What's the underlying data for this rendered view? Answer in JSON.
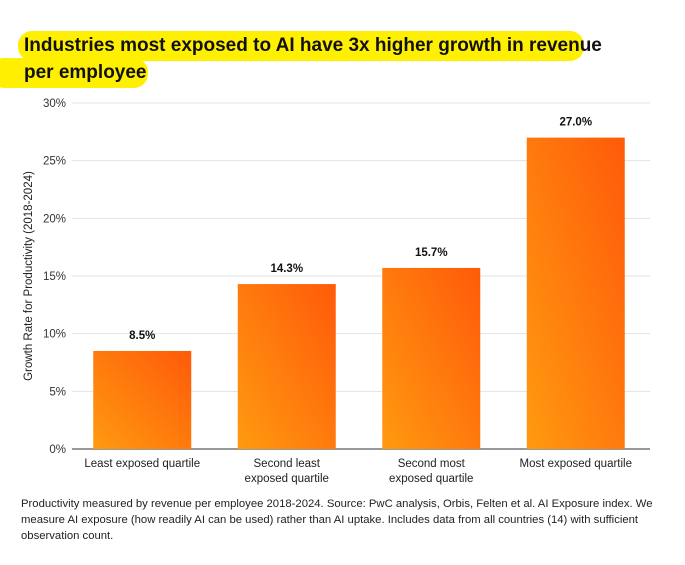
{
  "chart_data": {
    "type": "bar",
    "title": "Industries most exposed to AI have 3x higher growth in revenue per employee",
    "title_lines": [
      "Industries most exposed to AI have 3x higher growth in revenue",
      "per employee"
    ],
    "categories": [
      [
        "Least exposed quartile"
      ],
      [
        "Second least",
        "exposed quartile"
      ],
      [
        "Second most",
        "exposed quartile"
      ],
      [
        "Most exposed quartile"
      ]
    ],
    "values": [
      8.5,
      14.3,
      15.7,
      27.0
    ],
    "data_labels": [
      "8.5%",
      "14.3%",
      "15.7%",
      "27.0%"
    ],
    "ylabel": "Growth Rate for Productivity (2018-2024)",
    "xlabel": "",
    "ylim": [
      0,
      30
    ],
    "yticks": [
      0,
      5,
      10,
      15,
      20,
      25,
      30
    ],
    "ytick_labels": [
      "0%",
      "5%",
      "10%",
      "15%",
      "20%",
      "25%",
      "30%"
    ],
    "grid": true,
    "colors": {
      "bar_top": "#ff5a0a",
      "bar_bottom": "#ff9a10",
      "highlight": "#ffef00"
    }
  },
  "footnote": "Productivity measured by revenue per employee 2018-2024. Source: PwC analysis, Orbis, Felten et al. AI Exposure index. We measure AI exposure (how readily AI can be used) rather than AI uptake. Includes data from all countries (14) with sufficient observation count."
}
